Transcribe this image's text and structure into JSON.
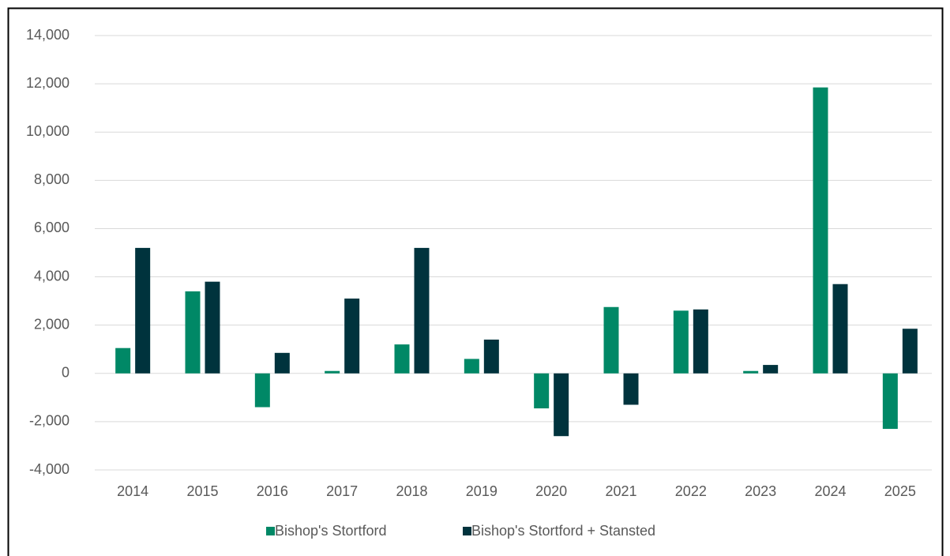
{
  "chart_data": {
    "type": "bar",
    "categories": [
      "2014",
      "2015",
      "2016",
      "2017",
      "2018",
      "2019",
      "2020",
      "2021",
      "2022",
      "2023",
      "2024",
      "2025"
    ],
    "series": [
      {
        "name": "Bishop's Stortford",
        "color": "#008866",
        "values": [
          1050,
          3400,
          -1400,
          100,
          1200,
          600,
          -1450,
          2750,
          2600,
          100,
          11850,
          -2300
        ]
      },
      {
        "name": "Bishop's Stortford + Stansted",
        "color": "#00333d",
        "values": [
          5200,
          3800,
          850,
          3100,
          5200,
          1400,
          -2600,
          -1300,
          2650,
          350,
          3700,
          1850
        ]
      }
    ],
    "ylim": [
      -4000,
      14000
    ],
    "yticks": [
      {
        "value": -4000,
        "label": "-4,000"
      },
      {
        "value": -2000,
        "label": "-2,000"
      },
      0,
      {
        "value": 2000,
        "label": "2,000"
      },
      {
        "value": 4000,
        "label": "4,000"
      },
      {
        "value": 6000,
        "label": "6,000"
      },
      {
        "value": 8000,
        "label": "8,000"
      },
      {
        "value": 10000,
        "label": "10,000"
      },
      {
        "value": 12000,
        "label": "12,000"
      },
      {
        "value": 14000,
        "label": "14,000"
      }
    ],
    "grid": true,
    "legend": "bottom"
  }
}
